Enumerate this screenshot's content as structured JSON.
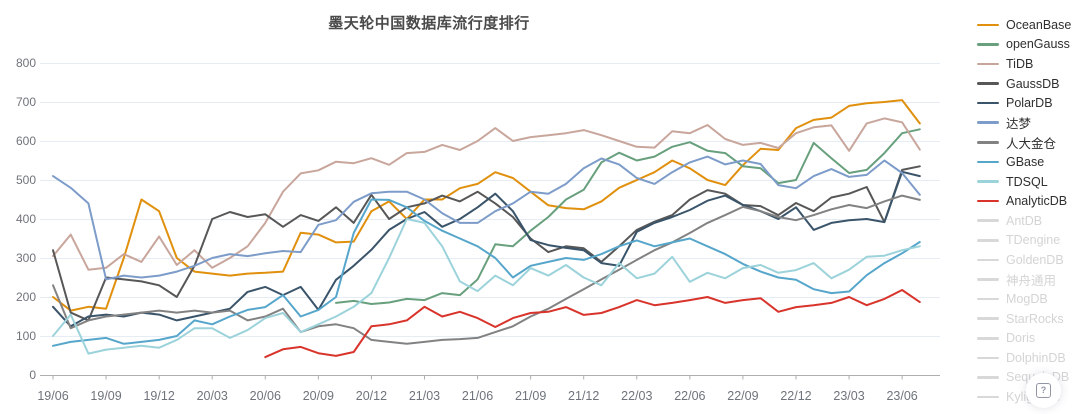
{
  "title": "墨天轮中国数据库流行度排行",
  "help_button": {
    "icon": "boxed-question-mark",
    "label": "?"
  },
  "chart_data": {
    "type": "line",
    "title": "墨天轮中国数据库流行度排行",
    "xlabel": "",
    "ylabel": "",
    "ylim": [
      0,
      800
    ],
    "y_ticks": [
      0,
      100,
      200,
      300,
      400,
      500,
      600,
      700,
      800
    ],
    "grid": true,
    "legend_position": "right",
    "x_tick_labels": [
      "19/06",
      "19/09",
      "19/12",
      "20/03",
      "20/06",
      "20/09",
      "20/12",
      "21/03",
      "21/06",
      "21/09",
      "21/12",
      "22/03",
      "22/06",
      "22/09",
      "22/12",
      "23/03",
      "23/06"
    ],
    "x_points_per_tick": 3,
    "x_is_monthly_from": "2019/06",
    "x_point_count": 50,
    "series": [
      {
        "name": "OceanBase",
        "color": "#E0900D",
        "active": true,
        "values": [
          200,
          165,
          175,
          170,
          300,
          450,
          420,
          300,
          265,
          260,
          255,
          260,
          262,
          265,
          365,
          360,
          340,
          342,
          420,
          445,
          400,
          450,
          450,
          479,
          490,
          520,
          505,
          470,
          435,
          428,
          425,
          445,
          480,
          500,
          520,
          550,
          530,
          500,
          487,
          538,
          580,
          577,
          633,
          654,
          660,
          690,
          697,
          700,
          705,
          645
        ]
      },
      {
        "name": "openGauss",
        "color": "#68A07E",
        "active": true,
        "values": [
          null,
          null,
          null,
          null,
          null,
          null,
          null,
          null,
          null,
          null,
          null,
          null,
          null,
          null,
          null,
          null,
          185,
          190,
          182,
          186,
          195,
          192,
          210,
          205,
          245,
          335,
          330,
          370,
          405,
          450,
          475,
          545,
          570,
          550,
          560,
          585,
          597,
          575,
          569,
          535,
          530,
          492,
          500,
          595,
          556,
          518,
          526,
          569,
          620,
          630
        ]
      },
      {
        "name": "TiDB",
        "color": "#C8A69C",
        "active": true,
        "values": [
          305,
          360,
          270,
          275,
          310,
          290,
          355,
          282,
          320,
          275,
          300,
          330,
          390,
          470,
          517,
          525,
          547,
          543,
          556,
          539,
          569,
          572,
          590,
          577,
          600,
          633,
          600,
          610,
          615,
          620,
          628,
          615,
          600,
          585,
          583,
          625,
          620,
          641,
          605,
          590,
          595,
          582,
          620,
          635,
          640,
          575,
          645,
          658,
          648,
          578
        ]
      },
      {
        "name": "GaussDB",
        "color": "#575757",
        "active": true,
        "values": [
          320,
          160,
          140,
          250,
          245,
          240,
          230,
          200,
          280,
          400,
          418,
          405,
          412,
          380,
          410,
          395,
          430,
          390,
          462,
          400,
          430,
          440,
          460,
          445,
          470,
          440,
          405,
          350,
          315,
          330,
          325,
          290,
          330,
          372,
          393,
          410,
          450,
          474,
          465,
          436,
          433,
          410,
          441,
          420,
          455,
          465,
          482,
          392,
          526,
          535
        ]
      },
      {
        "name": "PolarDB",
        "color": "#3A546A",
        "active": true,
        "values": [
          175,
          125,
          150,
          155,
          150,
          160,
          155,
          140,
          150,
          160,
          170,
          213,
          226,
          205,
          226,
          167,
          244,
          280,
          321,
          372,
          400,
          418,
          380,
          400,
          430,
          465,
          420,
          346,
          333,
          326,
          320,
          287,
          280,
          367,
          390,
          405,
          423,
          447,
          460,
          436,
          420,
          400,
          430,
          372,
          390,
          397,
          400,
          392,
          521,
          510
        ]
      },
      {
        "name": "达梦",
        "color": "#7D9CC9",
        "active": true,
        "values": [
          510,
          480,
          440,
          245,
          255,
          250,
          255,
          265,
          280,
          300,
          310,
          305,
          312,
          318,
          315,
          385,
          397,
          444,
          466,
          470,
          470,
          450,
          415,
          390,
          390,
          420,
          440,
          470,
          465,
          490,
          530,
          555,
          540,
          505,
          490,
          520,
          545,
          560,
          540,
          550,
          541,
          487,
          479,
          510,
          528,
          508,
          513,
          550,
          518,
          462
        ]
      },
      {
        "name": "人大金仓",
        "color": "#828282",
        "active": true,
        "values": [
          230,
          120,
          140,
          150,
          155,
          160,
          165,
          160,
          165,
          160,
          165,
          140,
          150,
          170,
          110,
          125,
          130,
          120,
          90,
          85,
          80,
          85,
          90,
          92,
          95,
          110,
          125,
          150,
          170,
          195,
          220,
          245,
          270,
          295,
          320,
          340,
          364,
          390,
          410,
          431,
          420,
          405,
          397,
          410,
          425,
          436,
          428,
          445,
          460,
          449
        ]
      },
      {
        "name": "GBase",
        "color": "#56A6CB",
        "active": true,
        "values": [
          75,
          85,
          90,
          95,
          80,
          85,
          90,
          100,
          140,
          130,
          150,
          167,
          174,
          205,
          150,
          167,
          200,
          364,
          450,
          449,
          430,
          395,
          370,
          350,
          330,
          300,
          250,
          280,
          290,
          300,
          295,
          310,
          330,
          345,
          330,
          340,
          350,
          330,
          310,
          285,
          265,
          250,
          244,
          220,
          210,
          214,
          256,
          287,
          312,
          341
        ]
      },
      {
        "name": "TDSQL",
        "color": "#9CD3DB",
        "active": true,
        "values": [
          100,
          155,
          55,
          65,
          70,
          75,
          70,
          90,
          120,
          120,
          95,
          115,
          146,
          159,
          110,
          130,
          150,
          175,
          210,
          300,
          400,
          390,
          330,
          240,
          215,
          255,
          230,
          274,
          255,
          282,
          250,
          230,
          287,
          248,
          260,
          303,
          239,
          262,
          248,
          274,
          282,
          262,
          269,
          287,
          248,
          270,
          303,
          306,
          320,
          330
        ]
      },
      {
        "name": "AnalyticDB",
        "color": "#D8342B",
        "active": true,
        "values": [
          null,
          null,
          null,
          null,
          null,
          null,
          null,
          null,
          null,
          null,
          null,
          null,
          46,
          66,
          72,
          56,
          49,
          59,
          125,
          130,
          140,
          175,
          150,
          162,
          146,
          123,
          146,
          159,
          162,
          174,
          154,
          159,
          174,
          192,
          179,
          185,
          192,
          200,
          185,
          192,
          197,
          162,
          174,
          179,
          185,
          200,
          179,
          195,
          218,
          187
        ]
      },
      {
        "name": "AntDB",
        "color": "#D8D8D8",
        "active": false
      },
      {
        "name": "TDengine",
        "color": "#D8D8D8",
        "active": false
      },
      {
        "name": "GoldenDB",
        "color": "#D8D8D8",
        "active": false
      },
      {
        "name": "神舟通用",
        "color": "#D8D8D8",
        "active": false
      },
      {
        "name": "MogDB",
        "color": "#D8D8D8",
        "active": false
      },
      {
        "name": "StarRocks",
        "color": "#D8D8D8",
        "active": false
      },
      {
        "name": "Doris",
        "color": "#D8D8D8",
        "active": false
      },
      {
        "name": "DolphinDB",
        "color": "#D8D8D8",
        "active": false
      },
      {
        "name": "SequoiaDB",
        "color": "#D8D8D8",
        "active": false
      },
      {
        "name": "Kyligence",
        "color": "#D8D8D8",
        "active": false
      }
    ],
    "style": {
      "grid_color": "#E6ECF4",
      "axis_color": "#AEAEAE",
      "tick_label_color": "#6F737B",
      "title_color": "#4A4A4A",
      "line_width": 2
    }
  }
}
